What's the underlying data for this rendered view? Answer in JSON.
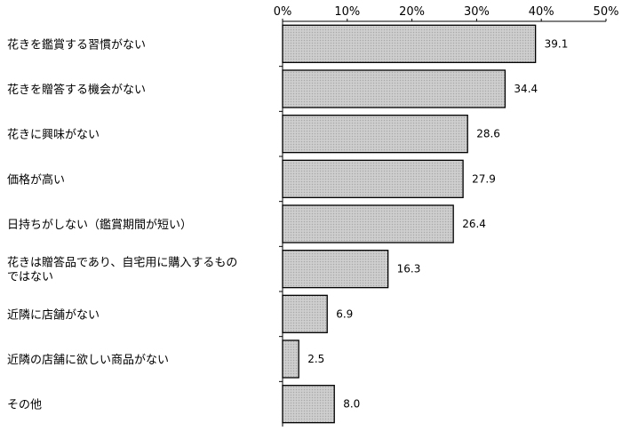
{
  "chart_data": {
    "type": "bar",
    "orientation": "horizontal",
    "categories": [
      [
        "花きを鑑賞する習慣がない"
      ],
      [
        "花きを贈答する機会がない"
      ],
      [
        "花きに興味がない"
      ],
      [
        "価格が高い"
      ],
      [
        "日持ちがしない（鑑賞期間が短い）"
      ],
      [
        "花きは贈答品であり、自宅用に購入するもの",
        "ではない"
      ],
      [
        "近隣に店舗がない"
      ],
      [
        "近隣の店舗に欲しい商品がない"
      ],
      [
        "その他"
      ]
    ],
    "values": [
      39.1,
      34.4,
      28.6,
      27.9,
      26.4,
      16.3,
      6.9,
      2.5,
      8.0
    ],
    "value_labels": [
      "39.1",
      "34.4",
      "28.6",
      "27.9",
      "26.4",
      "16.3",
      "6.9",
      "2.5",
      "8.0"
    ],
    "xlim": [
      0,
      50
    ],
    "x_ticks": [
      "0%",
      "10%",
      "20%",
      "30%",
      "40%",
      "50%"
    ],
    "x_axis_position": "top",
    "grid": false,
    "legend": "none",
    "bar_fill": "#c8c8c8",
    "bar_stroke": "#000000"
  }
}
